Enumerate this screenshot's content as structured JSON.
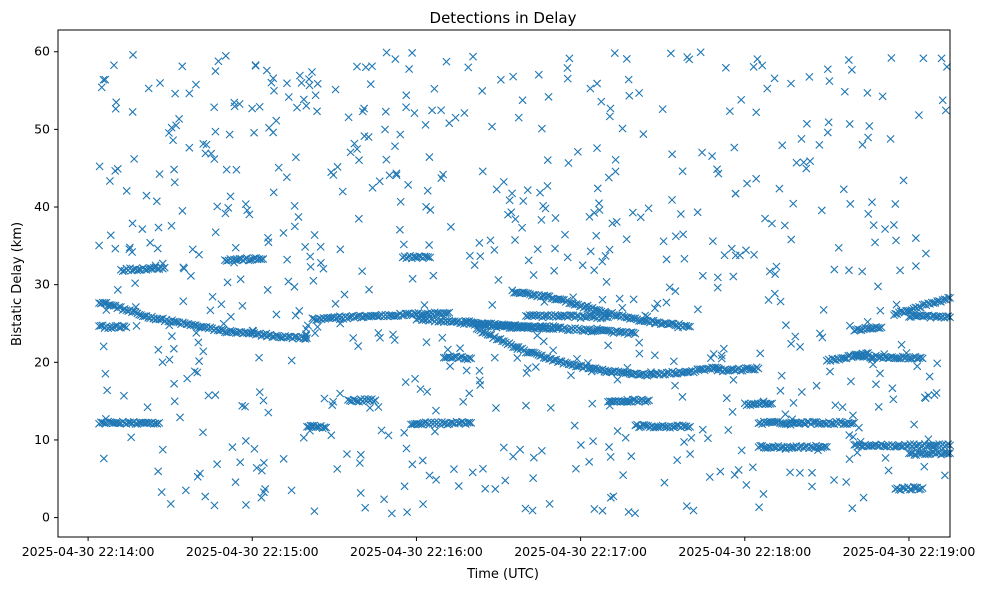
{
  "chart_data": {
    "type": "scatter",
    "title": "Detections in Delay",
    "xlabel": "Time (UTC)",
    "ylabel": "Bistatic Delay (km)",
    "marker": "x",
    "color": "#1f77b4",
    "xlim": [
      "2025-04-30T22:13:49",
      "2025-04-30T22:19:15"
    ],
    "ylim": [
      -2.5,
      62.8
    ],
    "x_ticks": [
      "2025-04-30 22:14:00",
      "2025-04-30 22:15:00",
      "2025-04-30 22:16:00",
      "2025-04-30 22:17:00",
      "2025-04-30 22:18:00",
      "2025-04-30 22:19:00"
    ],
    "y_ticks": [
      0,
      10,
      20,
      30,
      40,
      50,
      60
    ],
    "tracks": [
      {
        "times": [
          "22:14:04",
          "22:14:10",
          "22:14:20",
          "22:14:30",
          "22:14:50",
          "22:15:10",
          "22:15:20"
        ],
        "delays": [
          27.8,
          27.2,
          26.0,
          25.3,
          24.0,
          23.3,
          23.1
        ]
      },
      {
        "times": [
          "22:14:04",
          "22:14:14"
        ],
        "delays": [
          24.6,
          24.5
        ]
      },
      {
        "times": [
          "22:14:04",
          "22:14:26"
        ],
        "delays": [
          12.2,
          12.2
        ]
      },
      {
        "times": [
          "22:14:12",
          "22:14:28"
        ],
        "delays": [
          31.9,
          32.2
        ]
      },
      {
        "times": [
          "22:14:50",
          "22:15:04"
        ],
        "delays": [
          33.2,
          33.3
        ]
      },
      {
        "times": [
          "22:15:20",
          "22:15:27"
        ],
        "delays": [
          11.8,
          11.6
        ]
      },
      {
        "times": [
          "22:15:22",
          "22:15:40",
          "22:16:00",
          "22:16:12"
        ],
        "delays": [
          25.5,
          25.9,
          26.2,
          26.4
        ]
      },
      {
        "times": [
          "22:16:00",
          "22:16:10",
          "22:16:20",
          "22:16:40",
          "22:16:52"
        ],
        "delays": [
          25.6,
          25.3,
          25.0,
          24.6,
          24.5
        ]
      },
      {
        "times": [
          "22:15:35",
          "22:15:45"
        ],
        "delays": [
          15.1,
          15.1
        ]
      },
      {
        "times": [
          "22:15:55",
          "22:16:05"
        ],
        "delays": [
          33.6,
          33.5
        ]
      },
      {
        "times": [
          "22:15:58",
          "22:16:20"
        ],
        "delays": [
          12.1,
          12.2
        ]
      },
      {
        "times": [
          "22:16:10",
          "22:16:20"
        ],
        "delays": [
          20.7,
          20.5
        ]
      },
      {
        "times": [
          "22:16:18",
          "22:16:30",
          "22:16:50",
          "22:17:10",
          "22:17:20"
        ],
        "delays": [
          25.2,
          24.6,
          24.4,
          24.0,
          23.7
        ]
      },
      {
        "times": [
          "22:16:22",
          "22:16:40",
          "22:16:55",
          "22:17:10",
          "22:17:25",
          "22:17:40",
          "22:17:50"
        ],
        "delays": [
          24.2,
          21.4,
          19.8,
          18.8,
          18.4,
          18.8,
          19.3
        ]
      },
      {
        "times": [
          "22:16:35",
          "22:16:50",
          "22:17:05",
          "22:17:20",
          "22:17:40"
        ],
        "delays": [
          29.1,
          28.3,
          26.8,
          25.5,
          24.6
        ]
      },
      {
        "times": [
          "22:16:40",
          "22:17:10"
        ],
        "delays": [
          26.0,
          25.8
        ]
      },
      {
        "times": [
          "22:17:10",
          "22:17:25"
        ],
        "delays": [
          15.0,
          15.1
        ]
      },
      {
        "times": [
          "22:17:20",
          "22:17:40"
        ],
        "delays": [
          11.8,
          11.7
        ]
      },
      {
        "times": [
          "22:17:50",
          "22:18:05"
        ],
        "delays": [
          18.9,
          19.2
        ]
      },
      {
        "times": [
          "22:18:00",
          "22:18:10"
        ],
        "delays": [
          14.6,
          14.7
        ]
      },
      {
        "times": [
          "22:18:05",
          "22:18:40"
        ],
        "delays": [
          12.2,
          12.2
        ]
      },
      {
        "times": [
          "22:18:05",
          "22:18:30"
        ],
        "delays": [
          9.1,
          9.1
        ]
      },
      {
        "times": [
          "22:18:30",
          "22:18:45"
        ],
        "delays": [
          20.2,
          21.2
        ]
      },
      {
        "times": [
          "22:18:40",
          "22:19:05"
        ],
        "delays": [
          20.8,
          20.5
        ]
      },
      {
        "times": [
          "22:18:40",
          "22:19:15"
        ],
        "delays": [
          9.3,
          9.3
        ]
      },
      {
        "times": [
          "22:18:40",
          "22:18:50"
        ],
        "delays": [
          24.2,
          24.5
        ]
      },
      {
        "times": [
          "22:18:55",
          "22:19:15"
        ],
        "delays": [
          26.2,
          28.3
        ]
      },
      {
        "times": [
          "22:19:00",
          "22:19:15"
        ],
        "delays": [
          26.0,
          25.8
        ]
      },
      {
        "times": [
          "22:18:55",
          "22:19:05"
        ],
        "delays": [
          3.7,
          3.8
        ]
      },
      {
        "times": [
          "22:19:00",
          "22:19:15"
        ],
        "delays": [
          8.2,
          8.3
        ]
      }
    ],
    "background_detections": {
      "time_range": [
        "22:14:04",
        "22:19:14"
      ],
      "delay_range": [
        0.5,
        60.0
      ],
      "count": 700
    }
  }
}
